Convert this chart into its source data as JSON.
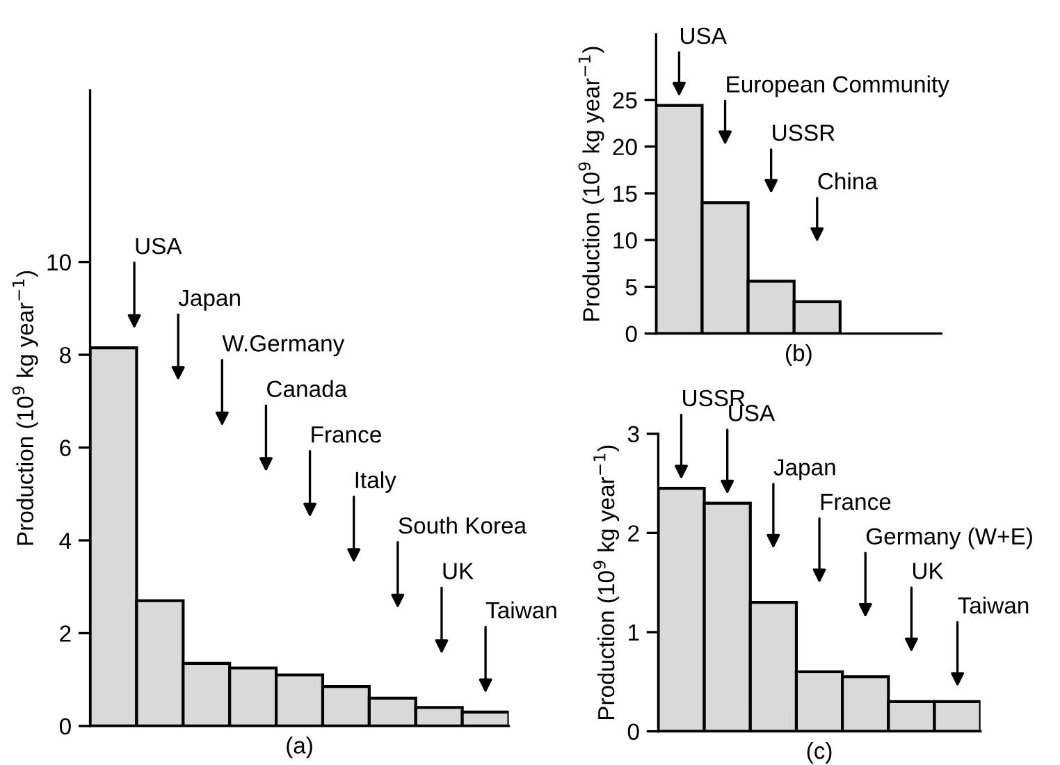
{
  "chart_data": [
    {
      "type": "bar",
      "xlabel": "(a)",
      "ylabel": "Production (10$^{9}$ kg year$^{−1}$)",
      "categories": [
        null,
        null,
        null,
        null,
        null,
        null,
        null,
        null,
        null
      ],
      "values": [
        8.15,
        2.7,
        1.35,
        1.25,
        1.1,
        0.85,
        0.6,
        0.4,
        0.3
      ],
      "color": "#d9d9d9",
      "ylim": [
        0,
        13.7
      ],
      "yticks": [
        0,
        2,
        4,
        6,
        8,
        10
      ],
      "annotations": [
        "USA",
        "Japan",
        "W.Germany",
        "Canada",
        "France",
        "Italy",
        "South Korea",
        "UK",
        "Taiwan"
      ]
    },
    {
      "type": "bar",
      "xlabel": "(b)",
      "ylabel": "Production (10$^{9}$ kg year$^{−1}$)",
      "categories": [
        null,
        null,
        null,
        null
      ],
      "values": [
        24.4,
        14,
        5.6,
        3.4
      ],
      "color": "#d9d9d9",
      "ylim": [
        0,
        32
      ],
      "yticks": [
        0,
        5,
        10,
        15,
        20,
        25
      ],
      "annotations": [
        "USA",
        "European Community",
        "USSR",
        "China"
      ]
    },
    {
      "type": "bar",
      "xlabel": "(c)",
      "ylabel": "Production (10$^{9}$ kg year$^{−1}$)",
      "categories": [
        null,
        null,
        null,
        null,
        null,
        null,
        null
      ],
      "values": [
        2.45,
        2.3,
        1.3,
        0.6,
        0.55,
        0.3,
        0.3
      ],
      "color": "#d9d9d9",
      "ylim": [
        0,
        3
      ],
      "yticks": [
        0,
        1,
        2,
        3
      ],
      "annotations": [
        "USSR",
        "USA",
        "Japan",
        "France",
        "Germany (W+E)",
        "UK",
        "Taiwan"
      ]
    }
  ]
}
